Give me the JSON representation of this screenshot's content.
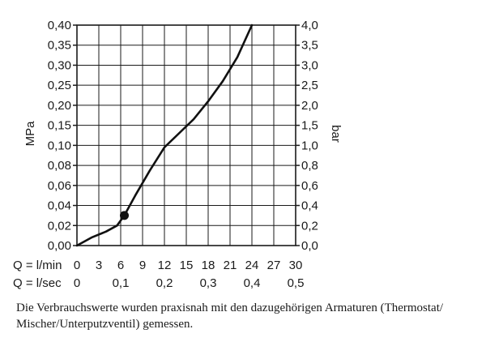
{
  "chart_data": {
    "type": "line",
    "title": "",
    "ylabel_left": "MPa",
    "ylabel_right": "bar",
    "y_left_ticks": [
      "0,00",
      "0,02",
      "0,04",
      "0,06",
      "0,08",
      "0,10",
      "0,15",
      "0,20",
      "0,25",
      "0,30",
      "0,35",
      "0,40"
    ],
    "y_right_ticks": [
      "0,0",
      "0,2",
      "0,4",
      "0,6",
      "0,8",
      "1,0",
      "1,5",
      "2,0",
      "2,5",
      "3,0",
      "3,5",
      "4,0"
    ],
    "x_axis_lpm": {
      "label": "Q = l/min",
      "ticks": [
        "0",
        "3",
        "6",
        "9",
        "12",
        "15",
        "18",
        "21",
        "24",
        "27",
        "30"
      ]
    },
    "x_axis_lps": {
      "label": "Q = l/sec",
      "ticks": [
        "0",
        "0,1",
        "0,2",
        "0,3",
        "0,4",
        "0,5"
      ]
    },
    "xlim": [
      0,
      30
    ],
    "grid": true,
    "series": [
      {
        "x": [
          0,
          2,
          4,
          5.5,
          6.5,
          8,
          10,
          12,
          14,
          16,
          18,
          20,
          22,
          24
        ],
        "y": [
          0,
          0.008,
          0.014,
          0.02,
          0.03,
          0.05,
          0.075,
          0.098,
          0.13,
          0.165,
          0.21,
          0.26,
          0.32,
          0.4
        ]
      }
    ],
    "marker": {
      "x": 6.5,
      "y": 0.03
    }
  },
  "caption": "Die Verbrauchswerte wurden praxisnah mit den dazugehörigen Armaturen (Thermostat/ Mischer/Unterputzventil) gemessen."
}
